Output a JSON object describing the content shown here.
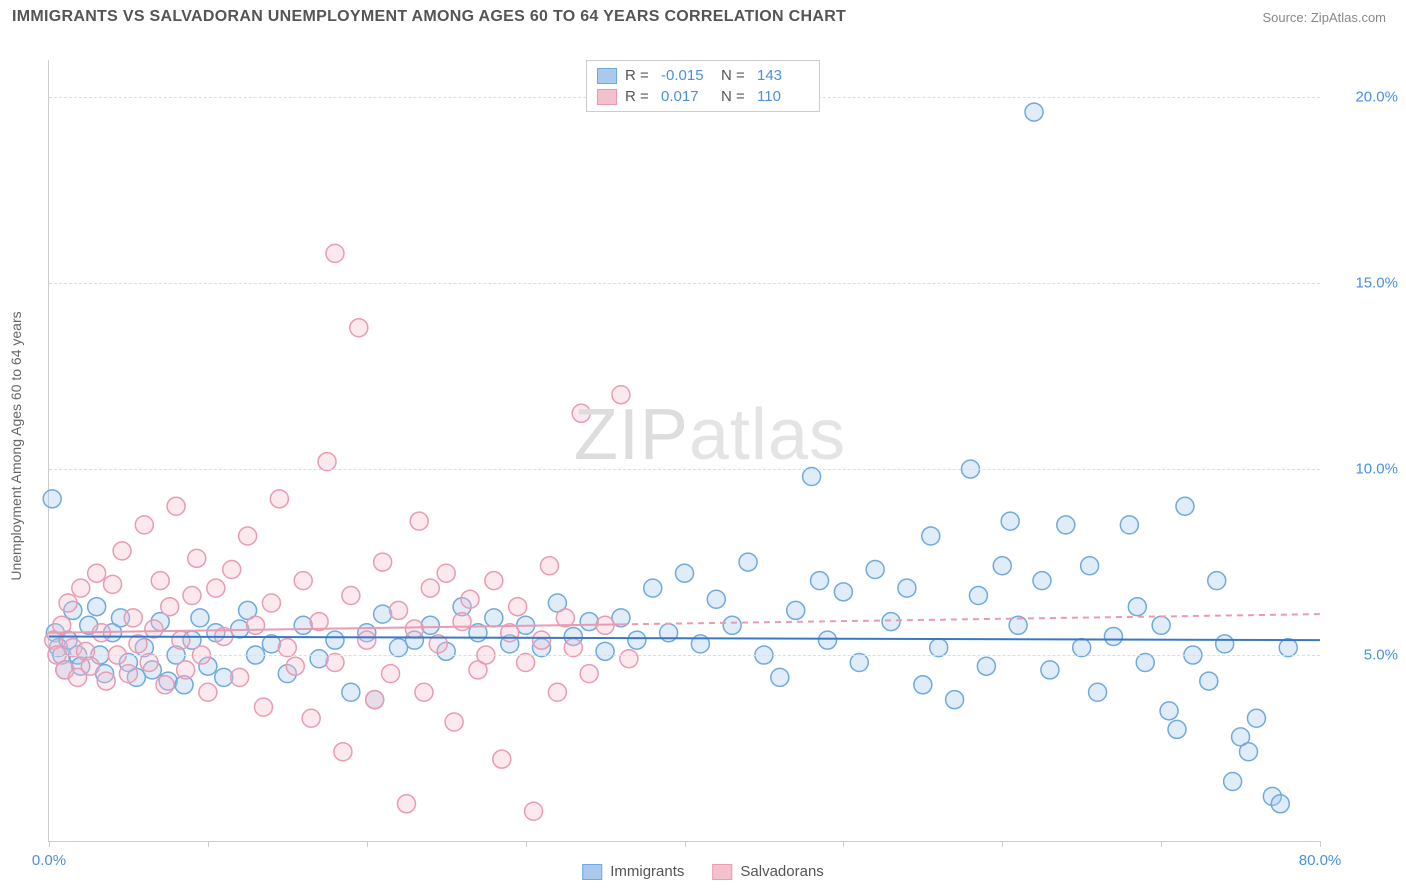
{
  "header": {
    "title": "IMMIGRANTS VS SALVADORAN UNEMPLOYMENT AMONG AGES 60 TO 64 YEARS CORRELATION CHART",
    "source": "Source: ZipAtlas.com"
  },
  "chart": {
    "type": "scatter",
    "y_axis_label": "Unemployment Among Ages 60 to 64 years",
    "xlim": [
      0,
      80
    ],
    "ylim": [
      0,
      21
    ],
    "x_ticks": [
      0,
      10,
      20,
      30,
      40,
      50,
      60,
      70,
      80
    ],
    "x_tick_labels": {
      "0": "0.0%",
      "80": "80.0%"
    },
    "y_ticks": [
      5,
      10,
      15,
      20
    ],
    "y_tick_labels": [
      "5.0%",
      "10.0%",
      "15.0%",
      "20.0%"
    ],
    "grid_color": "#dddddd",
    "background_color": "#ffffff",
    "axis_color": "#cccccc",
    "label_fontsize": 14,
    "tick_fontsize": 15,
    "tick_color": "#4a8fe0",
    "marker_radius": 9,
    "marker_stroke_width": 1.5,
    "marker_fill_opacity": 0.35,
    "series": [
      {
        "name": "Immigrants",
        "color_fill": "#a9c9ef",
        "color_stroke": "#6faadf",
        "R": "-0.015",
        "N": "143",
        "trend": {
          "y_start": 5.5,
          "y_end": 5.4,
          "dash": false,
          "color": "#3b78c4",
          "width": 2
        },
        "points": [
          [
            0.2,
            9.2
          ],
          [
            0.4,
            5.6
          ],
          [
            0.6,
            5.2
          ],
          [
            0.8,
            5.0
          ],
          [
            1,
            4.6
          ],
          [
            1.2,
            5.4
          ],
          [
            1.5,
            6.2
          ],
          [
            1.8,
            5.0
          ],
          [
            2.0,
            4.7
          ],
          [
            2.5,
            5.8
          ],
          [
            3,
            6.3
          ],
          [
            3.2,
            5.0
          ],
          [
            3.5,
            4.5
          ],
          [
            4,
            5.6
          ],
          [
            4.5,
            6.0
          ],
          [
            5,
            4.8
          ],
          [
            5.5,
            4.4
          ],
          [
            6,
            5.2
          ],
          [
            6.5,
            4.6
          ],
          [
            7,
            5.9
          ],
          [
            7.5,
            4.3
          ],
          [
            8,
            5.0
          ],
          [
            8.5,
            4.2
          ],
          [
            9,
            5.4
          ],
          [
            9.5,
            6.0
          ],
          [
            10,
            4.7
          ],
          [
            10.5,
            5.6
          ],
          [
            11,
            4.4
          ],
          [
            12,
            5.7
          ],
          [
            12.5,
            6.2
          ],
          [
            13,
            5.0
          ],
          [
            14,
            5.3
          ],
          [
            15,
            4.5
          ],
          [
            16,
            5.8
          ],
          [
            17,
            4.9
          ],
          [
            18,
            5.4
          ],
          [
            19,
            4.0
          ],
          [
            20,
            5.6
          ],
          [
            20.5,
            3.8
          ],
          [
            21,
            6.1
          ],
          [
            22,
            5.2
          ],
          [
            23,
            5.4
          ],
          [
            24,
            5.8
          ],
          [
            25,
            5.1
          ],
          [
            26,
            6.3
          ],
          [
            27,
            5.6
          ],
          [
            28,
            6.0
          ],
          [
            29,
            5.3
          ],
          [
            30,
            5.8
          ],
          [
            31,
            5.2
          ],
          [
            32,
            6.4
          ],
          [
            33,
            5.5
          ],
          [
            34,
            5.9
          ],
          [
            35,
            5.1
          ],
          [
            36,
            6.0
          ],
          [
            37,
            5.4
          ],
          [
            38,
            6.8
          ],
          [
            39,
            5.6
          ],
          [
            40,
            7.2
          ],
          [
            41,
            5.3
          ],
          [
            42,
            6.5
          ],
          [
            43,
            5.8
          ],
          [
            44,
            7.5
          ],
          [
            45,
            5.0
          ],
          [
            46,
            4.4
          ],
          [
            47,
            6.2
          ],
          [
            48,
            9.8
          ],
          [
            48.5,
            7.0
          ],
          [
            49,
            5.4
          ],
          [
            50,
            6.7
          ],
          [
            51,
            4.8
          ],
          [
            52,
            7.3
          ],
          [
            53,
            5.9
          ],
          [
            54,
            6.8
          ],
          [
            55,
            4.2
          ],
          [
            55.5,
            8.2
          ],
          [
            56,
            5.2
          ],
          [
            57,
            3.8
          ],
          [
            58,
            10.0
          ],
          [
            58.5,
            6.6
          ],
          [
            59,
            4.7
          ],
          [
            60,
            7.4
          ],
          [
            60.5,
            8.6
          ],
          [
            61,
            5.8
          ],
          [
            62,
            19.6
          ],
          [
            62.5,
            7.0
          ],
          [
            63,
            4.6
          ],
          [
            64,
            8.5
          ],
          [
            65,
            5.2
          ],
          [
            65.5,
            7.4
          ],
          [
            66,
            4.0
          ],
          [
            67,
            5.5
          ],
          [
            68,
            8.5
          ],
          [
            68.5,
            6.3
          ],
          [
            69,
            4.8
          ],
          [
            70,
            5.8
          ],
          [
            70.5,
            3.5
          ],
          [
            71,
            3.0
          ],
          [
            71.5,
            9.0
          ],
          [
            72,
            5.0
          ],
          [
            73,
            4.3
          ],
          [
            73.5,
            7.0
          ],
          [
            74,
            5.3
          ],
          [
            74.5,
            1.6
          ],
          [
            75,
            2.8
          ],
          [
            75.5,
            2.4
          ],
          [
            76,
            3.3
          ],
          [
            77,
            1.2
          ],
          [
            77.5,
            1.0
          ],
          [
            78,
            5.2
          ]
        ]
      },
      {
        "name": "Salvadorans",
        "color_fill": "#f4c0ce",
        "color_stroke": "#e99bb2",
        "R": "0.017",
        "N": "110",
        "trend": {
          "y_start": 5.6,
          "y_end": 6.1,
          "dash": true,
          "dash_after_x": 36,
          "color": "#e99bb2",
          "width": 2
        },
        "points": [
          [
            0.3,
            5.4
          ],
          [
            0.5,
            5.0
          ],
          [
            0.8,
            5.8
          ],
          [
            1,
            4.6
          ],
          [
            1.2,
            6.4
          ],
          [
            1.5,
            5.2
          ],
          [
            1.8,
            4.4
          ],
          [
            2,
            6.8
          ],
          [
            2.3,
            5.1
          ],
          [
            2.6,
            4.7
          ],
          [
            3,
            7.2
          ],
          [
            3.3,
            5.6
          ],
          [
            3.6,
            4.3
          ],
          [
            4,
            6.9
          ],
          [
            4.3,
            5.0
          ],
          [
            4.6,
            7.8
          ],
          [
            5,
            4.5
          ],
          [
            5.3,
            6.0
          ],
          [
            5.6,
            5.3
          ],
          [
            6,
            8.5
          ],
          [
            6.3,
            4.8
          ],
          [
            6.6,
            5.7
          ],
          [
            7,
            7.0
          ],
          [
            7.3,
            4.2
          ],
          [
            7.6,
            6.3
          ],
          [
            8,
            9.0
          ],
          [
            8.3,
            5.4
          ],
          [
            8.6,
            4.6
          ],
          [
            9,
            6.6
          ],
          [
            9.3,
            7.6
          ],
          [
            9.6,
            5.0
          ],
          [
            10,
            4.0
          ],
          [
            10.5,
            6.8
          ],
          [
            11,
            5.5
          ],
          [
            11.5,
            7.3
          ],
          [
            12,
            4.4
          ],
          [
            12.5,
            8.2
          ],
          [
            13,
            5.8
          ],
          [
            13.5,
            3.6
          ],
          [
            14,
            6.4
          ],
          [
            14.5,
            9.2
          ],
          [
            15,
            5.2
          ],
          [
            15.5,
            4.7
          ],
          [
            16,
            7.0
          ],
          [
            16.5,
            3.3
          ],
          [
            17,
            5.9
          ],
          [
            17.5,
            10.2
          ],
          [
            18,
            4.8
          ],
          [
            18,
            15.8
          ],
          [
            18.5,
            2.4
          ],
          [
            19,
            6.6
          ],
          [
            19.5,
            13.8
          ],
          [
            20,
            5.4
          ],
          [
            20.5,
            3.8
          ],
          [
            21,
            7.5
          ],
          [
            21.5,
            4.5
          ],
          [
            22,
            6.2
          ],
          [
            22.5,
            1.0
          ],
          [
            23,
            5.7
          ],
          [
            23.3,
            8.6
          ],
          [
            23.6,
            4.0
          ],
          [
            24,
            6.8
          ],
          [
            24.5,
            5.3
          ],
          [
            25,
            7.2
          ],
          [
            25.5,
            3.2
          ],
          [
            26,
            5.9
          ],
          [
            26.5,
            6.5
          ],
          [
            27,
            4.6
          ],
          [
            27.5,
            5.0
          ],
          [
            28,
            7.0
          ],
          [
            28.5,
            2.2
          ],
          [
            29,
            5.6
          ],
          [
            29.5,
            6.3
          ],
          [
            30,
            4.8
          ],
          [
            30.5,
            0.8
          ],
          [
            31,
            5.4
          ],
          [
            31.5,
            7.4
          ],
          [
            32,
            4.0
          ],
          [
            32.5,
            6.0
          ],
          [
            33,
            5.2
          ],
          [
            33.5,
            11.5
          ],
          [
            34,
            4.5
          ],
          [
            35,
            5.8
          ],
          [
            36,
            12.0
          ],
          [
            36.5,
            4.9
          ]
        ]
      }
    ],
    "watermark": {
      "text_left": "ZIP",
      "text_right": "atlas",
      "color": "#dddddd",
      "fontsize": 72
    }
  },
  "stats_box": {
    "rows": [
      {
        "swatch_fill": "#a9c9ef",
        "swatch_stroke": "#6faadf",
        "r_label": "R =",
        "r_val": "-0.015",
        "n_label": "N =",
        "n_val": "143"
      },
      {
        "swatch_fill": "#f4c0ce",
        "swatch_stroke": "#e99bb2",
        "r_label": "R =",
        "r_val": "0.017",
        "n_label": "N =",
        "n_val": "110"
      }
    ]
  },
  "legend": {
    "items": [
      {
        "label": "Immigrants",
        "fill": "#a9c9ef",
        "stroke": "#6faadf"
      },
      {
        "label": "Salvadorans",
        "fill": "#f4c0ce",
        "stroke": "#e99bb2"
      }
    ]
  }
}
